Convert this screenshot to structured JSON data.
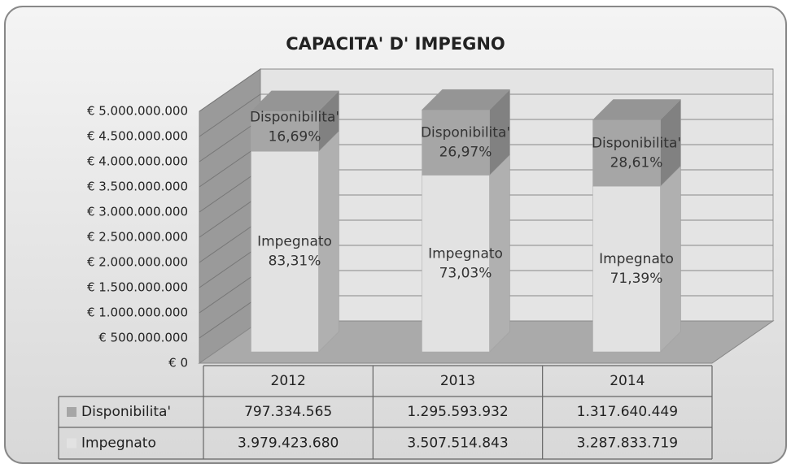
{
  "chart_data": {
    "type": "bar3d_stacked",
    "title": "CAPACITA' D' IMPEGNO",
    "categories": [
      "2012",
      "2013",
      "2014"
    ],
    "series": [
      {
        "name": "Impegnato",
        "color": "#e2e2e2",
        "values": [
          3979423680,
          3507514843,
          3287833719
        ],
        "value_labels": [
          "3.979.423.680",
          "3.507.514.843",
          "3.287.833.719"
        ],
        "shares": [
          83.31,
          73.03,
          71.39
        ],
        "share_labels": [
          "83,31%",
          "73,03%",
          "71,39%"
        ]
      },
      {
        "name": "Disponibilita'",
        "color": "#a6a6a6",
        "values": [
          797334565,
          1295593932,
          1317640449
        ],
        "value_labels": [
          "797.334.565",
          "1.295.593.932",
          "1.317.640.449"
        ],
        "shares": [
          16.69,
          26.97,
          28.61
        ],
        "share_labels": [
          "16,69%",
          "26,97%",
          "28,61%"
        ]
      }
    ],
    "ylim": [
      0,
      5000000000
    ],
    "yticks": [
      {
        "value": 0,
        "label": "€ 0"
      },
      {
        "value": 500000000,
        "label": "€ 500.000.000"
      },
      {
        "value": 1000000000,
        "label": "€ 1.000.000.000"
      },
      {
        "value": 1500000000,
        "label": "€ 1.500.000.000"
      },
      {
        "value": 2000000000,
        "label": "€ 2.000.000.000"
      },
      {
        "value": 2500000000,
        "label": "€ 2.500.000.000"
      },
      {
        "value": 3000000000,
        "label": "€ 3.000.000.000"
      },
      {
        "value": 3500000000,
        "label": "€ 3.500.000.000"
      },
      {
        "value": 4000000000,
        "label": "€ 4.000.000.000"
      },
      {
        "value": 4500000000,
        "label": "€ 4.500.000.000"
      },
      {
        "value": 5000000000,
        "label": "€ 5.000.000.000"
      }
    ],
    "grid": true
  }
}
